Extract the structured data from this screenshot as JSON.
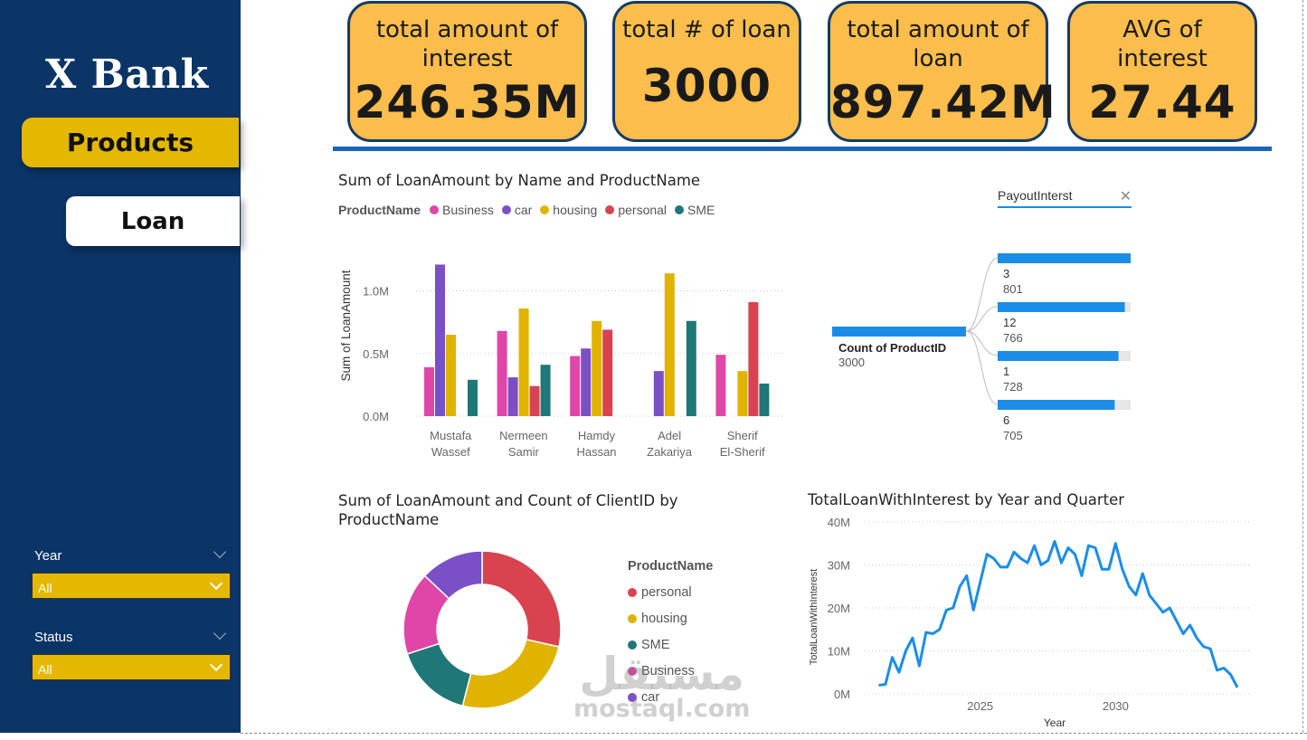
{
  "sidebar": {
    "brand": "X Bank",
    "nav": {
      "products": "Products",
      "loan": "Loan"
    },
    "filters": [
      {
        "label": "Year",
        "value": "All"
      },
      {
        "label": "Status",
        "value": "All"
      }
    ]
  },
  "kpis": [
    {
      "title": "total amount of interest",
      "value": "246.35M"
    },
    {
      "title": "total # of loan",
      "value": "3000"
    },
    {
      "title": "total amount of loan",
      "value": "897.42M"
    },
    {
      "title": "AVG of interest",
      "value": "27.44"
    }
  ],
  "colors": {
    "Business": "#df46a8",
    "car": "#7b4fc6",
    "housing": "#dfb300",
    "personal": "#d8434f",
    "SME": "#1f7777",
    "line": "#1c8de6",
    "kpi": "#fbbd4b",
    "sidebar": "#0b3467"
  },
  "decomp": {
    "header": "PayoutInterst",
    "root_label": "Count of ProductID",
    "root_value": "3000",
    "nodes": [
      {
        "name": "3",
        "value": 801
      },
      {
        "name": "12",
        "value": 766
      },
      {
        "name": "1",
        "value": 728
      },
      {
        "name": "6",
        "value": 705
      }
    ]
  },
  "chart_data": [
    {
      "type": "bar",
      "title": "Sum of LoanAmount by Name and ProductName",
      "legend_title": "ProductName",
      "ylabel": "Sum of LoanAmount",
      "ylim": [
        0,
        1.3
      ],
      "yticks": [
        "0.0M",
        "0.5M",
        "1.0M"
      ],
      "categories": [
        [
          "Mustafa",
          "Wassef"
        ],
        [
          "Nermeen",
          "Samir"
        ],
        [
          "Hamdy",
          "Hassan"
        ],
        [
          "Adel",
          "Zakariya"
        ],
        [
          "Sherif",
          "El-Sherif"
        ]
      ],
      "series": [
        {
          "name": "Business",
          "values": [
            0.39,
            0.68,
            0.48,
            0,
            0.49
          ]
        },
        {
          "name": "car",
          "values": [
            1.21,
            0.31,
            0.54,
            0.36,
            0
          ]
        },
        {
          "name": "housing",
          "values": [
            0.65,
            0.86,
            0.76,
            1.14,
            0.36
          ]
        },
        {
          "name": "personal",
          "values": [
            0,
            0.24,
            0.69,
            0,
            0.91
          ]
        },
        {
          "name": "SME",
          "values": [
            0.29,
            0.41,
            0,
            0.76,
            0.26
          ]
        }
      ]
    },
    {
      "type": "pie",
      "title": "Sum of LoanAmount and Count of ClientID by ProductName",
      "legend_title": "ProductName",
      "labels": [
        "personal",
        "housing",
        "SME",
        "Business",
        "car"
      ],
      "values": [
        28.5,
        25.5,
        16,
        17,
        13
      ]
    },
    {
      "type": "line",
      "title": "TotalLoanWithInterest by Year and Quarter",
      "xlabel": "Year",
      "ylabel": "TotalLoanWithInterest",
      "ylim": [
        0,
        40
      ],
      "yticks": [
        "0M",
        "10M",
        "20M",
        "30M",
        "40M"
      ],
      "xticks": [
        "2025",
        "2030"
      ],
      "x": [
        2021.25,
        2021.5,
        2021.75,
        2022,
        2022.25,
        2022.5,
        2022.75,
        2023,
        2023.25,
        2023.5,
        2023.75,
        2024,
        2024.25,
        2024.5,
        2024.75,
        2025,
        2025.25,
        2025.5,
        2025.75,
        2026,
        2026.25,
        2026.5,
        2026.75,
        2027,
        2027.25,
        2027.5,
        2027.75,
        2028,
        2028.25,
        2028.5,
        2028.75,
        2029,
        2029.25,
        2029.5,
        2029.75,
        2030,
        2030.25,
        2030.5,
        2030.75,
        2031,
        2031.25,
        2031.5,
        2031.75,
        2032,
        2032.25,
        2032.5,
        2032.75,
        2033,
        2033.25,
        2033.5,
        2033.75,
        2034,
        2034.25,
        2034.5
      ],
      "y": [
        2,
        2.2,
        8.5,
        5,
        10,
        13,
        6.5,
        14.3,
        14,
        15,
        19.5,
        20,
        25,
        27.5,
        19.5,
        26,
        32.5,
        31.5,
        29.5,
        29.5,
        33,
        31.5,
        30.5,
        34.5,
        30,
        31,
        35.5,
        30.5,
        34,
        32.5,
        27.5,
        34.5,
        34,
        29,
        29,
        35,
        29,
        25,
        23,
        28,
        23,
        21,
        19,
        20,
        17,
        14,
        16,
        13,
        11,
        10.5,
        5.5,
        6,
        4.5,
        1.5
      ]
    }
  ],
  "watermark": {
    "arabic": "مستقل",
    "latin": "mostaql.com"
  }
}
